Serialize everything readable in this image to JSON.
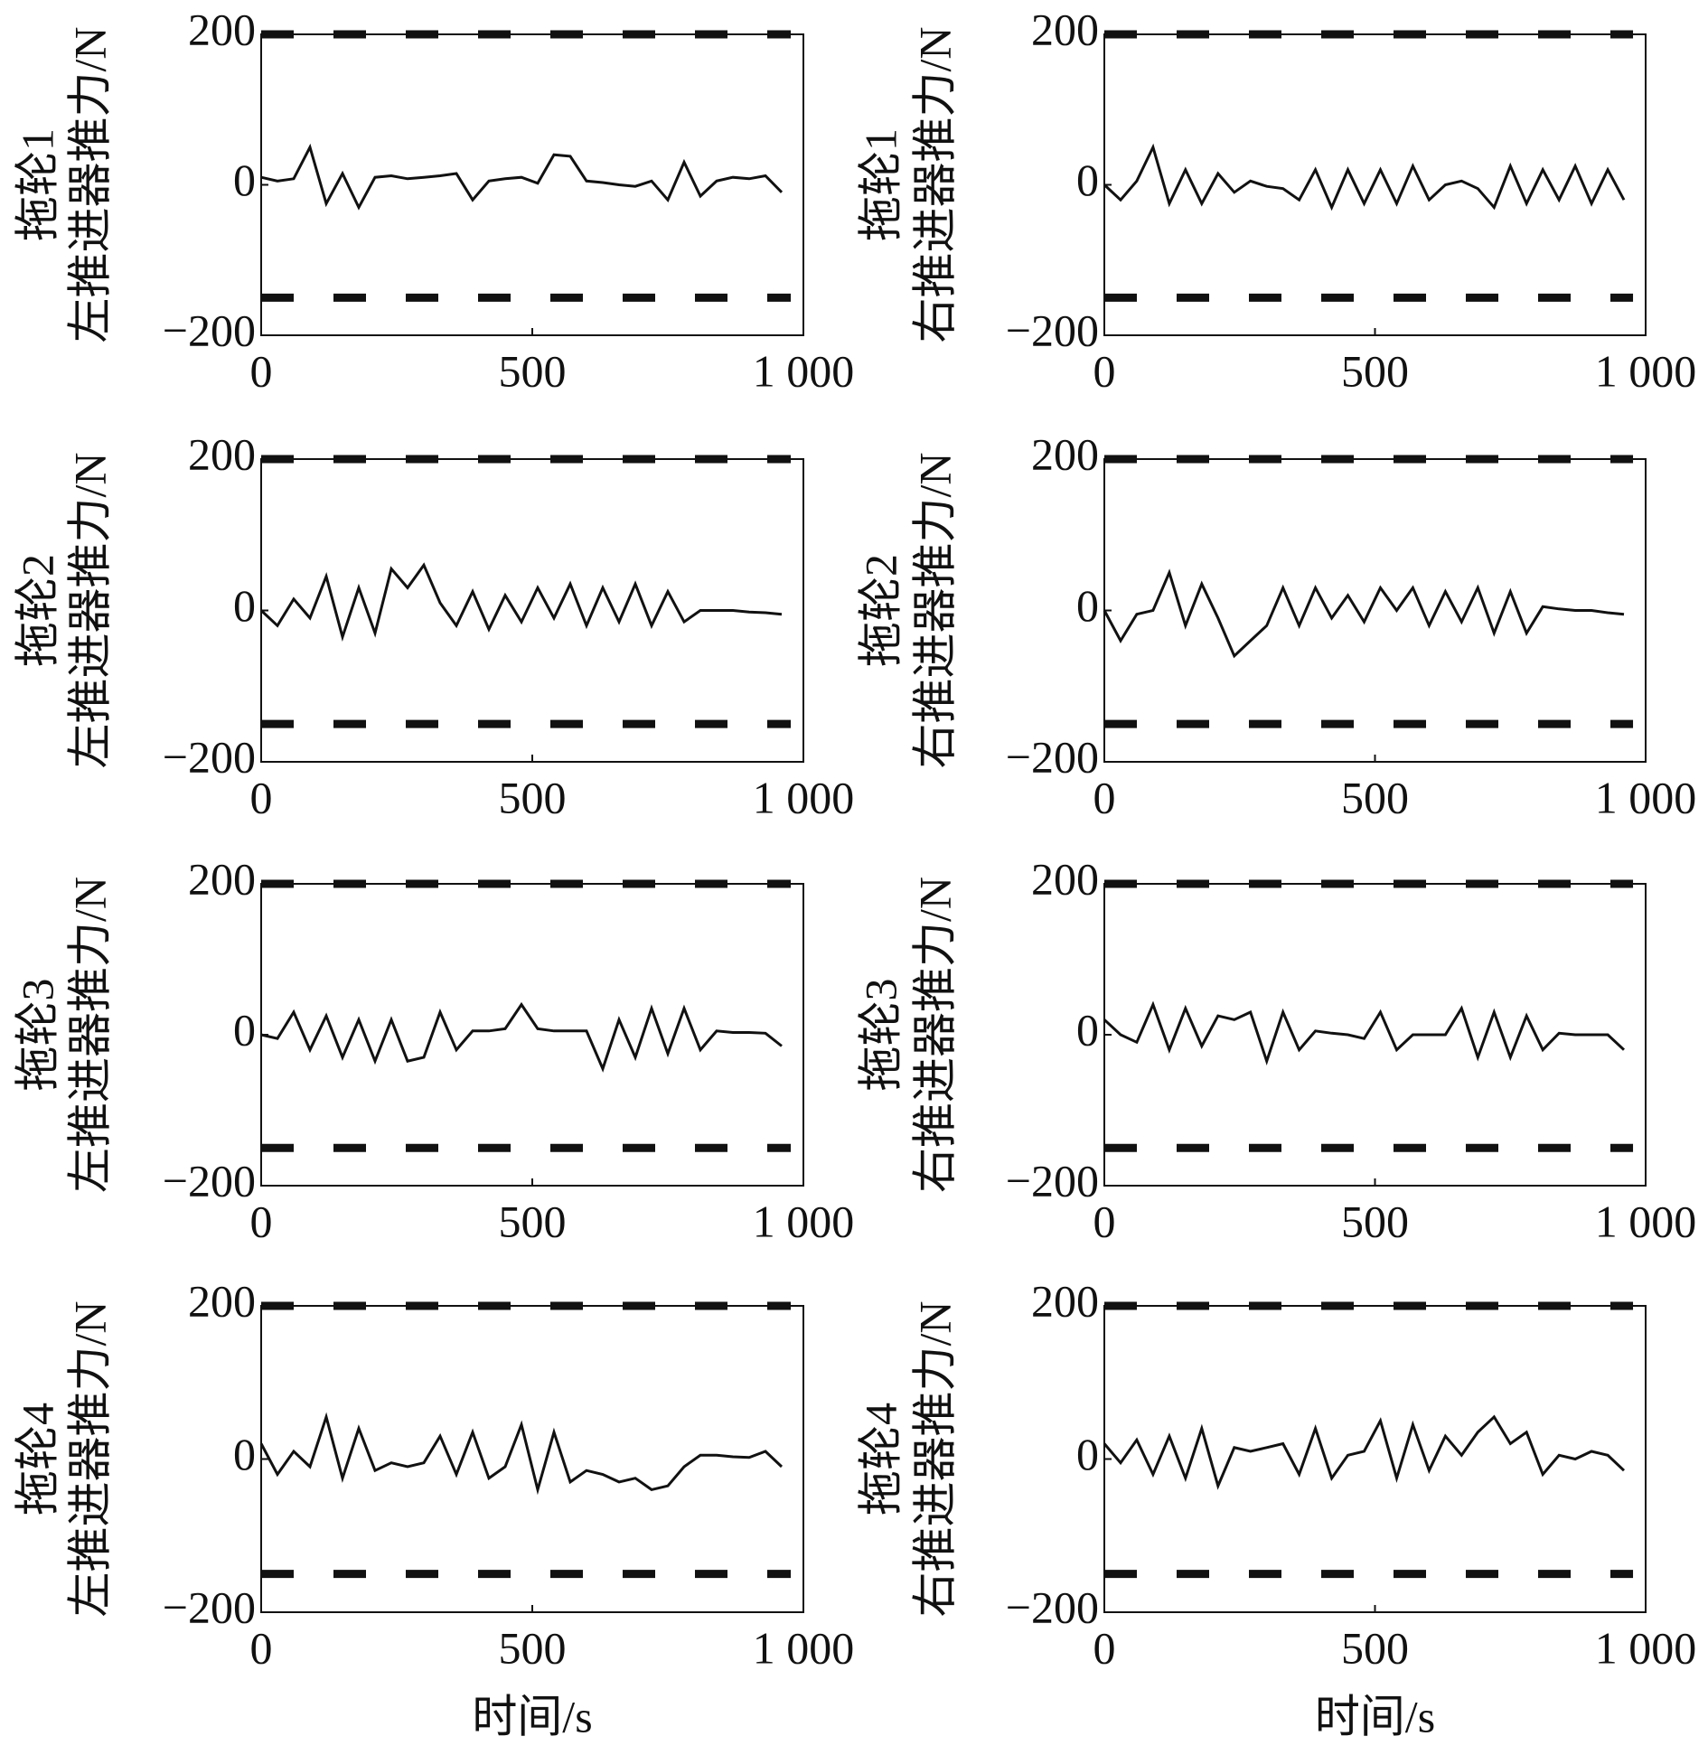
{
  "chart_data": [
    {
      "type": "line",
      "tug": "拖轮1",
      "ylabel": "左推进器推力/N",
      "x": [
        0,
        30,
        60,
        90,
        120,
        150,
        180,
        210,
        240,
        270,
        300,
        330,
        360,
        390,
        420,
        450,
        480,
        510,
        540,
        570,
        600,
        630,
        660,
        690,
        720,
        750,
        780,
        810,
        840,
        870,
        900,
        930,
        960
      ],
      "series": [
        {
          "color": "#111111",
          "values": [
            10,
            5,
            8,
            50,
            -25,
            15,
            -30,
            10,
            12,
            8,
            10,
            12,
            15,
            -20,
            5,
            8,
            10,
            2,
            40,
            38,
            5,
            3,
            0,
            -2,
            5,
            -20,
            30,
            -15,
            5,
            10,
            8,
            12,
            -10
          ]
        }
      ],
      "limit_lines": [
        200,
        -150
      ],
      "limit_color": "#111111",
      "xlim": [
        0,
        1000
      ],
      "ylim": [
        -200,
        200
      ],
      "xticks": [
        0,
        500,
        {
          "value": 1000,
          "label": "1 000"
        }
      ],
      "yticks": [
        {
          "value": -200,
          "label": "−200"
        },
        0,
        200
      ],
      "grid": false
    },
    {
      "type": "line",
      "tug": "拖轮1",
      "ylabel": "右推进器推力/N",
      "x": [
        0,
        30,
        60,
        90,
        120,
        150,
        180,
        210,
        240,
        270,
        300,
        330,
        360,
        390,
        420,
        450,
        480,
        510,
        540,
        570,
        600,
        630,
        660,
        690,
        720,
        750,
        780,
        810,
        840,
        870,
        900,
        930,
        960
      ],
      "series": [
        {
          "color": "#111111",
          "values": [
            0,
            -20,
            5,
            50,
            -25,
            20,
            -25,
            15,
            -10,
            5,
            -2,
            -5,
            -20,
            20,
            -30,
            20,
            -25,
            20,
            -25,
            25,
            -20,
            0,
            5,
            -5,
            -30,
            25,
            -25,
            20,
            -20,
            25,
            -25,
            20,
            -20
          ]
        }
      ],
      "limit_lines": [
        200,
        -150
      ],
      "limit_color": "#111111",
      "xlim": [
        0,
        1000
      ],
      "ylim": [
        -200,
        200
      ],
      "xticks": [
        0,
        500,
        {
          "value": 1000,
          "label": "1 000"
        }
      ],
      "yticks": [
        {
          "value": -200,
          "label": "−200"
        },
        0,
        200
      ],
      "grid": false
    },
    {
      "type": "line",
      "tug": "拖轮2",
      "ylabel": "左推进器推力/N",
      "x": [
        0,
        30,
        60,
        90,
        120,
        150,
        180,
        210,
        240,
        270,
        300,
        330,
        360,
        390,
        420,
        450,
        480,
        510,
        540,
        570,
        600,
        630,
        660,
        690,
        720,
        750,
        780,
        810,
        840,
        870,
        900,
        930,
        960
      ],
      "series": [
        {
          "color": "#111111",
          "values": [
            0,
            -20,
            15,
            -10,
            45,
            -35,
            30,
            -30,
            55,
            30,
            60,
            10,
            -20,
            25,
            -25,
            20,
            -15,
            30,
            -10,
            35,
            -20,
            30,
            -15,
            35,
            -20,
            25,
            -15,
            0,
            0,
            0,
            -2,
            -3,
            -5
          ]
        }
      ],
      "limit_lines": [
        200,
        -150
      ],
      "limit_color": "#111111",
      "xlim": [
        0,
        1000
      ],
      "ylim": [
        -200,
        200
      ],
      "xticks": [
        0,
        500,
        {
          "value": 1000,
          "label": "1 000"
        }
      ],
      "yticks": [
        {
          "value": -200,
          "label": "−200"
        },
        0,
        200
      ],
      "grid": false
    },
    {
      "type": "line",
      "tug": "拖轮2",
      "ylabel": "右推进器推力/N",
      "x": [
        0,
        30,
        60,
        90,
        120,
        150,
        180,
        210,
        240,
        270,
        300,
        330,
        360,
        390,
        420,
        450,
        480,
        510,
        540,
        570,
        600,
        630,
        660,
        690,
        720,
        750,
        780,
        810,
        840,
        870,
        900,
        930,
        960
      ],
      "series": [
        {
          "color": "#111111",
          "values": [
            0,
            -40,
            -5,
            0,
            50,
            -20,
            35,
            -10,
            -60,
            -40,
            -20,
            30,
            -20,
            30,
            -10,
            20,
            -15,
            30,
            0,
            30,
            -20,
            25,
            -15,
            30,
            -30,
            25,
            -30,
            5,
            2,
            0,
            0,
            -3,
            -5
          ]
        }
      ],
      "limit_lines": [
        200,
        -150
      ],
      "limit_color": "#111111",
      "xlim": [
        0,
        1000
      ],
      "ylim": [
        -200,
        200
      ],
      "xticks": [
        0,
        500,
        {
          "value": 1000,
          "label": "1 000"
        }
      ],
      "yticks": [
        {
          "value": -200,
          "label": "−200"
        },
        0,
        200
      ],
      "grid": false
    },
    {
      "type": "line",
      "tug": "拖轮3",
      "ylabel": "左推进器推力/N",
      "x": [
        0,
        30,
        60,
        90,
        120,
        150,
        180,
        210,
        240,
        270,
        300,
        330,
        360,
        390,
        420,
        450,
        480,
        510,
        540,
        570,
        600,
        630,
        660,
        690,
        720,
        750,
        780,
        810,
        840,
        870,
        900,
        930,
        960
      ],
      "series": [
        {
          "color": "#111111",
          "values": [
            0,
            -5,
            30,
            -20,
            25,
            -30,
            20,
            -35,
            20,
            -35,
            -30,
            30,
            -20,
            5,
            5,
            8,
            40,
            8,
            5,
            5,
            5,
            -45,
            20,
            -30,
            35,
            -25,
            35,
            -20,
            5,
            3,
            3,
            2,
            -15
          ]
        }
      ],
      "limit_lines": [
        200,
        -150
      ],
      "limit_color": "#111111",
      "xlim": [
        0,
        1000
      ],
      "ylim": [
        -200,
        200
      ],
      "xticks": [
        0,
        500,
        {
          "value": 1000,
          "label": "1 000"
        }
      ],
      "yticks": [
        {
          "value": -200,
          "label": "−200"
        },
        0,
        200
      ],
      "grid": false
    },
    {
      "type": "line",
      "tug": "拖轮3",
      "ylabel": "右推进器推力/N",
      "x": [
        0,
        30,
        60,
        90,
        120,
        150,
        180,
        210,
        240,
        270,
        300,
        330,
        360,
        390,
        420,
        450,
        480,
        510,
        540,
        570,
        600,
        630,
        660,
        690,
        720,
        750,
        780,
        810,
        840,
        870,
        900,
        930,
        960
      ],
      "series": [
        {
          "color": "#111111",
          "values": [
            20,
            0,
            -10,
            40,
            -20,
            35,
            -15,
            25,
            20,
            30,
            -35,
            30,
            -20,
            5,
            2,
            0,
            -5,
            30,
            -20,
            0,
            0,
            0,
            35,
            -30,
            30,
            -30,
            25,
            -20,
            2,
            0,
            0,
            0,
            -20
          ]
        }
      ],
      "limit_lines": [
        200,
        -150
      ],
      "limit_color": "#111111",
      "xlim": [
        0,
        1000
      ],
      "ylim": [
        -200,
        200
      ],
      "xticks": [
        0,
        500,
        {
          "value": 1000,
          "label": "1 000"
        }
      ],
      "yticks": [
        {
          "value": -200,
          "label": "−200"
        },
        0,
        200
      ],
      "grid": false
    },
    {
      "type": "line",
      "tug": "拖轮4",
      "ylabel": "左推进器推力/N",
      "xlabel": "时间/s",
      "x": [
        0,
        30,
        60,
        90,
        120,
        150,
        180,
        210,
        240,
        270,
        300,
        330,
        360,
        390,
        420,
        450,
        480,
        510,
        540,
        570,
        600,
        630,
        660,
        690,
        720,
        750,
        780,
        810,
        840,
        870,
        900,
        930,
        960
      ],
      "series": [
        {
          "color": "#111111",
          "values": [
            20,
            -20,
            10,
            -10,
            55,
            -25,
            40,
            -15,
            -5,
            -10,
            -5,
            30,
            -20,
            35,
            -25,
            -10,
            45,
            -40,
            35,
            -30,
            -15,
            -20,
            -30,
            -25,
            -40,
            -35,
            -10,
            5,
            5,
            3,
            2,
            10,
            -10
          ]
        }
      ],
      "limit_lines": [
        200,
        -150
      ],
      "limit_color": "#111111",
      "xlim": [
        0,
        1000
      ],
      "ylim": [
        -200,
        200
      ],
      "xticks": [
        0,
        500,
        {
          "value": 1000,
          "label": "1 000"
        }
      ],
      "yticks": [
        {
          "value": -200,
          "label": "−200"
        },
        0,
        200
      ],
      "grid": false
    },
    {
      "type": "line",
      "tug": "拖轮4",
      "ylabel": "右推进器推力/N",
      "xlabel": "时间/s",
      "x": [
        0,
        30,
        60,
        90,
        120,
        150,
        180,
        210,
        240,
        270,
        300,
        330,
        360,
        390,
        420,
        450,
        480,
        510,
        540,
        570,
        600,
        630,
        660,
        690,
        720,
        750,
        780,
        810,
        840,
        870,
        900,
        930,
        960
      ],
      "series": [
        {
          "color": "#111111",
          "values": [
            20,
            -5,
            25,
            -20,
            30,
            -25,
            40,
            -35,
            15,
            10,
            15,
            20,
            -20,
            40,
            -25,
            5,
            10,
            50,
            -25,
            45,
            -15,
            30,
            5,
            35,
            55,
            20,
            35,
            -20,
            5,
            0,
            10,
            5,
            -15
          ]
        }
      ],
      "limit_lines": [
        200,
        -150
      ],
      "limit_color": "#111111",
      "xlim": [
        0,
        1000
      ],
      "ylim": [
        -200,
        200
      ],
      "xticks": [
        0,
        500,
        {
          "value": 1000,
          "label": "1 000"
        }
      ],
      "yticks": [
        {
          "value": -200,
          "label": "−200"
        },
        0,
        200
      ],
      "grid": false
    }
  ]
}
